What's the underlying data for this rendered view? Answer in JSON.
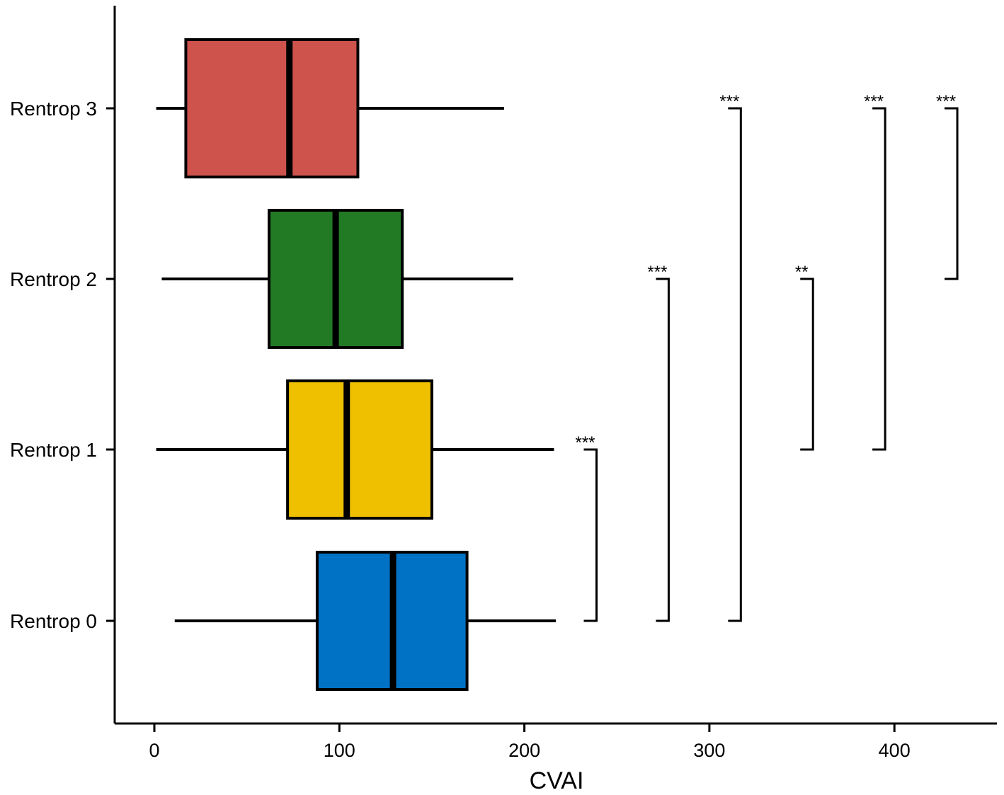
{
  "chart_data": {
    "type": "boxplot",
    "orientation": "horizontal",
    "title": "",
    "xlabel": "CVAI",
    "ylabel": "",
    "xlim": [
      -21,
      455
    ],
    "xticks": [
      0,
      100,
      200,
      300,
      400
    ],
    "xtick_labels": [
      "0",
      "100",
      "200",
      "300",
      "400"
    ],
    "grid": false,
    "legend": "none",
    "categories": [
      "Rentrop 0",
      "Rentrop 1",
      "Rentrop 2",
      "Rentrop 3"
    ],
    "boxes": [
      {
        "category": "Rentrop 0",
        "whisker_low": 11,
        "q1": 88,
        "median": 129,
        "q3": 169,
        "whisker_high": 217,
        "color": "#0072C6"
      },
      {
        "category": "Rentrop 1",
        "whisker_low": 1,
        "q1": 72,
        "median": 104,
        "q3": 150,
        "whisker_high": 216,
        "color": "#EFC000"
      },
      {
        "category": "Rentrop 2",
        "whisker_low": 4,
        "q1": 62,
        "median": 98,
        "q3": 134,
        "whisker_high": 194,
        "color": "#237A24"
      },
      {
        "category": "Rentrop 3",
        "whisker_low": 1,
        "q1": 17,
        "median": 73,
        "q3": 110,
        "whisker_high": 189,
        "color": "#CD534C"
      }
    ],
    "comparisons": [
      {
        "from": "Rentrop 0",
        "to": "Rentrop 1",
        "x": 239,
        "label": "***"
      },
      {
        "from": "Rentrop 0",
        "to": "Rentrop 2",
        "x": 278,
        "label": "***"
      },
      {
        "from": "Rentrop 0",
        "to": "Rentrop 3",
        "x": 317,
        "label": "***"
      },
      {
        "from": "Rentrop 1",
        "to": "Rentrop 2",
        "x": 356,
        "label": "**"
      },
      {
        "from": "Rentrop 1",
        "to": "Rentrop 3",
        "x": 395,
        "label": "***"
      },
      {
        "from": "Rentrop 2",
        "to": "Rentrop 3",
        "x": 434,
        "label": "***"
      }
    ]
  }
}
